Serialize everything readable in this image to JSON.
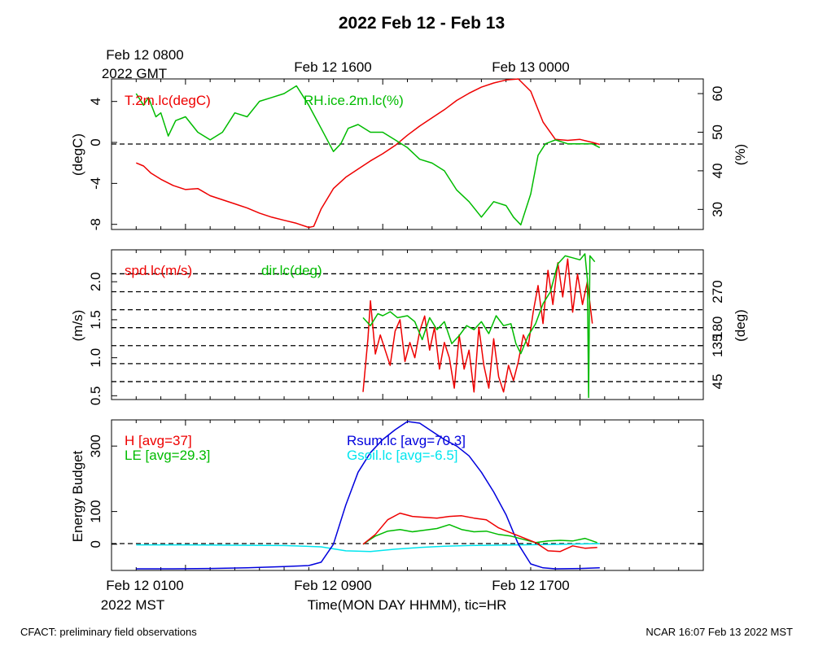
{
  "title": "2022 Feb 12 - Feb 13",
  "top_axis": {
    "labels": [
      {
        "line1": "Feb 12 0800",
        "line2": "2022 GMT"
      },
      {
        "line1": "Feb 12 1600",
        "line2": ""
      },
      {
        "line1": "Feb 13 0000",
        "line2": ""
      }
    ]
  },
  "bottom_axis": {
    "labels": [
      {
        "line1": "Feb 12 0100",
        "line2": "2022 MST"
      },
      {
        "line1": "Feb 12 0900",
        "line2": ""
      },
      {
        "line1": "Feb 12 1700",
        "line2": ""
      }
    ],
    "title": "Time(MON DAY HHMM), tic=HR"
  },
  "footer": {
    "left": "CFACT: preliminary field observations",
    "right": "NCAR 16:07 Feb 13 2022 MST"
  },
  "chart_data": [
    {
      "type": "line",
      "ylabel_left": "(degC)",
      "ylabel_right": "(%)",
      "ylim_left": [
        -8.5,
        6.2
      ],
      "ylim_right": [
        24.8,
        63.8
      ],
      "yticks_left": [
        "4",
        "0",
        "-4",
        "-8"
      ],
      "yticks_right": [
        "60",
        "50",
        "40",
        "30"
      ],
      "reference_line": 0,
      "series": [
        {
          "name": "T.2m.lc(degC)",
          "axis": "left",
          "color": "#ee0000",
          "x": [
            1.0,
            1.3,
            1.6,
            2.0,
            2.5,
            3.0,
            3.5,
            4.0,
            4.5,
            5.0,
            5.5,
            6.0,
            6.5,
            7.0,
            7.5,
            8.0,
            8.2,
            8.5,
            9.0,
            9.5,
            10.0,
            10.5,
            11.0,
            11.5,
            12.0,
            12.5,
            13.0,
            13.5,
            14.0,
            14.5,
            15.0,
            15.5,
            16.0,
            16.5,
            17.0,
            17.5,
            18.0,
            18.5,
            19.0,
            19.5,
            19.8
          ],
          "values": [
            -2.0,
            -2.3,
            -3.0,
            -3.6,
            -4.2,
            -4.6,
            -4.5,
            -5.2,
            -5.6,
            -6.0,
            -6.4,
            -6.9,
            -7.3,
            -7.6,
            -7.9,
            -8.3,
            -8.2,
            -6.5,
            -4.5,
            -3.4,
            -2.6,
            -1.8,
            -1.1,
            -0.3,
            0.7,
            1.6,
            2.4,
            3.2,
            4.1,
            4.8,
            5.4,
            5.8,
            6.1,
            6.2,
            5.0,
            2.0,
            0.3,
            0.2,
            0.3,
            0.0,
            -0.2
          ]
        },
        {
          "name": "RH.ice.2m.lc(%)",
          "axis": "right",
          "color": "#00bb00",
          "x": [
            1.0,
            1.3,
            1.5,
            1.8,
            2.0,
            2.3,
            2.6,
            3.0,
            3.5,
            4.0,
            4.5,
            5.0,
            5.5,
            6.0,
            6.5,
            7.0,
            7.5,
            8.0,
            8.5,
            9.0,
            9.3,
            9.6,
            10.0,
            10.5,
            11.0,
            11.5,
            12.0,
            12.5,
            13.0,
            13.5,
            14.0,
            14.5,
            15.0,
            15.5,
            16.0,
            16.3,
            16.6,
            17.0,
            17.3,
            17.6,
            18.0,
            18.5,
            19.0,
            19.5,
            19.8
          ],
          "values": [
            60,
            57,
            59,
            54,
            55,
            49,
            53,
            54,
            50,
            48,
            50,
            55,
            54,
            58,
            59,
            60,
            62,
            57,
            51,
            45,
            47,
            51,
            52,
            50,
            50,
            48,
            46,
            43,
            42,
            40,
            35,
            32,
            28,
            32,
            31,
            28,
            26,
            34,
            44,
            47,
            48,
            47,
            47,
            47,
            46
          ]
        }
      ]
    },
    {
      "type": "line",
      "ylabel_left": "(m/s)",
      "ylabel_right": "(deg)",
      "ylim_left": [
        0.45,
        2.42
      ],
      "ylim_right": [
        0,
        375
      ],
      "yticks_left": [
        "2.0",
        "1.5",
        "1.0",
        "0.5"
      ],
      "yticks_right": [
        "270",
        "180",
        "135",
        "45"
      ],
      "yticks_right_values": [
        270,
        180,
        135,
        45
      ],
      "dashed_lines_right": [
        45,
        90,
        135,
        180,
        225,
        270,
        315
      ],
      "series": [
        {
          "name": "spd.lc(m/s)",
          "axis": "left",
          "color": "#ee0000",
          "x": [
            10.2,
            10.4,
            10.5,
            10.7,
            10.9,
            11.1,
            11.3,
            11.5,
            11.7,
            11.9,
            12.1,
            12.3,
            12.5,
            12.7,
            12.9,
            13.1,
            13.3,
            13.5,
            13.7,
            13.9,
            14.1,
            14.3,
            14.5,
            14.7,
            14.9,
            15.1,
            15.3,
            15.5,
            15.7,
            15.9,
            16.1,
            16.3,
            16.5,
            16.7,
            16.9,
            17.1,
            17.3,
            17.5,
            17.7,
            17.9,
            18.1,
            18.3,
            18.5,
            18.7,
            18.9,
            19.1,
            19.3,
            19.5
          ],
          "values": [
            0.55,
            1.25,
            1.75,
            1.05,
            1.3,
            1.1,
            0.9,
            1.35,
            1.5,
            0.95,
            1.2,
            1.0,
            1.35,
            1.55,
            1.1,
            1.4,
            0.85,
            1.2,
            1.0,
            0.6,
            1.3,
            0.85,
            1.1,
            0.55,
            1.4,
            0.9,
            0.6,
            1.25,
            0.75,
            0.55,
            0.9,
            0.7,
            0.95,
            1.3,
            1.15,
            1.6,
            1.95,
            1.45,
            2.15,
            1.7,
            2.25,
            1.8,
            2.3,
            1.6,
            2.1,
            1.7,
            2.0,
            1.45
          ]
        },
        {
          "name": "dir.lc(deg)",
          "axis": "right",
          "color": "#00bb00",
          "x": [
            10.2,
            10.5,
            10.8,
            11.0,
            11.3,
            11.6,
            12.0,
            12.3,
            12.6,
            12.9,
            13.2,
            13.5,
            13.8,
            14.1,
            14.4,
            14.7,
            15.0,
            15.3,
            15.6,
            15.9,
            16.2,
            16.4,
            16.6,
            16.9,
            17.2,
            17.5,
            17.8,
            18.1,
            18.4,
            18.7,
            19.0,
            19.2,
            19.3,
            19.35,
            19.4,
            19.6
          ],
          "values": [
            205,
            185,
            215,
            210,
            220,
            205,
            210,
            195,
            150,
            205,
            175,
            195,
            140,
            160,
            185,
            175,
            195,
            165,
            210,
            185,
            190,
            140,
            115,
            160,
            190,
            240,
            270,
            340,
            360,
            355,
            350,
            365,
            300,
            5,
            360,
            345
          ]
        }
      ]
    },
    {
      "type": "line",
      "ylabel_left": "Energy Budget",
      "ylim": [
        -80,
        380
      ],
      "yticks": [
        "300",
        "100",
        "0"
      ],
      "reference_line": 0,
      "series": [
        {
          "name": "H [avg=37]",
          "color": "#ee0000",
          "x": [
            10.2,
            10.7,
            11.2,
            11.7,
            12.2,
            12.7,
            13.2,
            13.7,
            14.2,
            14.7,
            15.2,
            15.7,
            16.2,
            16.7,
            17.2,
            17.7,
            18.2,
            18.7,
            19.2,
            19.7
          ],
          "values": [
            0,
            30,
            75,
            95,
            85,
            82,
            80,
            85,
            87,
            80,
            75,
            50,
            35,
            20,
            5,
            -20,
            -22,
            -5,
            -12,
            -10
          ]
        },
        {
          "name": "LE [avg=29.3]",
          "color": "#00bb00",
          "x": [
            10.2,
            10.7,
            11.2,
            11.7,
            12.2,
            12.7,
            13.2,
            13.7,
            14.2,
            14.7,
            15.2,
            15.7,
            16.2,
            16.7,
            17.2,
            17.7,
            18.2,
            18.7,
            19.2,
            19.7
          ],
          "values": [
            0,
            25,
            40,
            45,
            38,
            43,
            48,
            60,
            45,
            38,
            40,
            30,
            25,
            15,
            5,
            10,
            12,
            10,
            18,
            5
          ]
        },
        {
          "name": "Rsum.lc [avg=70.3]",
          "color": "#0000dd",
          "x": [
            1.0,
            2.5,
            4.0,
            5.5,
            7.0,
            8.0,
            8.5,
            9.0,
            9.5,
            10.0,
            10.5,
            11.0,
            11.5,
            12.0,
            12.5,
            13.0,
            13.5,
            14.0,
            14.5,
            15.0,
            15.5,
            16.0,
            16.5,
            17.0,
            17.5,
            18.0,
            19.0,
            19.8
          ],
          "values": [
            -75,
            -75,
            -74,
            -72,
            -68,
            -65,
            -55,
            0,
            120,
            220,
            280,
            320,
            350,
            375,
            370,
            345,
            320,
            300,
            270,
            220,
            160,
            90,
            0,
            -60,
            -72,
            -75,
            -74,
            -72
          ]
        },
        {
          "name": "Gsoil.lc [avg=-6.5]",
          "color": "#00e5ee",
          "x": [
            1.0,
            3.0,
            5.0,
            7.0,
            8.5,
            9.5,
            10.5,
            11.5,
            12.5,
            13.5,
            14.5,
            15.5,
            16.5,
            17.5,
            18.5,
            19.8
          ],
          "values": [
            -2,
            -2,
            -3,
            -4,
            -8,
            -20,
            -22,
            -15,
            -10,
            -6,
            -4,
            -3,
            -2,
            -1,
            0,
            2
          ]
        }
      ]
    }
  ]
}
